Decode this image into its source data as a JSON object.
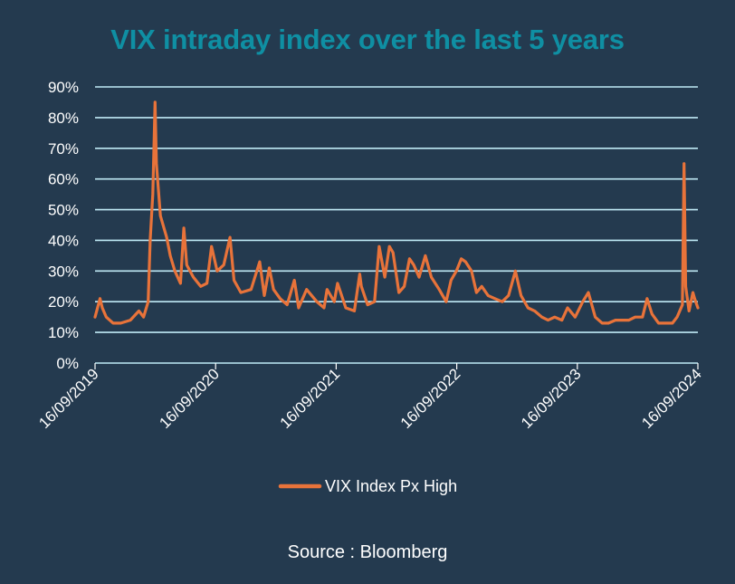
{
  "title": "VIX intraday index over the last 5 years",
  "source": "Source : Bloomberg",
  "colors": {
    "background": "#243a4f",
    "title": "#0f8fa3",
    "series": "#e8733a",
    "grid": "#bfe9f5"
  },
  "chart_data": {
    "type": "line",
    "title": "VIX intraday index over the last 5 years",
    "xlabel": "",
    "ylabel": "",
    "ylim": [
      0,
      90
    ],
    "xlim": [
      "2019-09-16",
      "2024-09-16"
    ],
    "y_ticks": [
      "0%",
      "10%",
      "20%",
      "30%",
      "40%",
      "50%",
      "60%",
      "70%",
      "80%",
      "90%"
    ],
    "x_ticks": [
      "16/09/2019",
      "16/09/2020",
      "16/09/2021",
      "16/09/2022",
      "16/09/2023",
      "16/09/2024"
    ],
    "grid": true,
    "legend_position": "bottom",
    "series": [
      {
        "name": "VIX Index Px High",
        "x": [
          "2019-09-16",
          "2019-10-01",
          "2019-10-08",
          "2019-10-20",
          "2019-11-10",
          "2019-12-03",
          "2020-01-01",
          "2020-01-27",
          "2020-02-10",
          "2020-02-24",
          "2020-03-01",
          "2020-03-09",
          "2020-03-16",
          "2020-03-20",
          "2020-04-01",
          "2020-04-20",
          "2020-05-01",
          "2020-05-15",
          "2020-06-01",
          "2020-06-11",
          "2020-06-20",
          "2020-07-10",
          "2020-08-01",
          "2020-08-20",
          "2020-09-03",
          "2020-09-20",
          "2020-10-10",
          "2020-10-29",
          "2020-11-10",
          "2020-12-01",
          "2021-01-01",
          "2021-01-27",
          "2021-02-10",
          "2021-02-25",
          "2021-03-10",
          "2021-03-30",
          "2021-04-20",
          "2021-05-12",
          "2021-05-25",
          "2021-06-18",
          "2021-07-19",
          "2021-08-10",
          "2021-08-19",
          "2021-09-10",
          "2021-09-20",
          "2021-10-15",
          "2021-11-10",
          "2021-11-26",
          "2021-12-01",
          "2021-12-20",
          "2022-01-10",
          "2022-01-24",
          "2022-02-10",
          "2022-02-24",
          "2022-03-07",
          "2022-03-25",
          "2022-04-10",
          "2022-04-26",
          "2022-05-09",
          "2022-05-25",
          "2022-06-13",
          "2022-07-01",
          "2022-07-25",
          "2022-08-15",
          "2022-08-30",
          "2022-09-15",
          "2022-09-30",
          "2022-10-13",
          "2022-10-31",
          "2022-11-15",
          "2022-12-01",
          "2022-12-20",
          "2023-01-10",
          "2023-02-01",
          "2023-02-20",
          "2023-03-13",
          "2023-03-30",
          "2023-04-20",
          "2023-05-10",
          "2023-06-01",
          "2023-06-20",
          "2023-07-10",
          "2023-08-01",
          "2023-08-18",
          "2023-09-10",
          "2023-10-03",
          "2023-10-20",
          "2023-11-10",
          "2023-12-01",
          "2023-12-20",
          "2024-01-10",
          "2024-02-01",
          "2024-02-20",
          "2024-03-10",
          "2024-04-01",
          "2024-04-15",
          "2024-04-30",
          "2024-05-20",
          "2024-06-10",
          "2024-07-01",
          "2024-07-15",
          "2024-07-31",
          "2024-08-05",
          "2024-08-10",
          "2024-08-20",
          "2024-09-01",
          "2024-09-06",
          "2024-09-16"
        ],
        "y": [
          15,
          21,
          18,
          15,
          13,
          13,
          14,
          17,
          15,
          20,
          40,
          55,
          85,
          65,
          48,
          41,
          35,
          30,
          26,
          44,
          32,
          28,
          25,
          26,
          38,
          30,
          32,
          41,
          27,
          23,
          24,
          33,
          22,
          31,
          24,
          21,
          19,
          27,
          18,
          24,
          20,
          18,
          24,
          20,
          26,
          18,
          17,
          29,
          25,
          19,
          20,
          38,
          28,
          38,
          36,
          23,
          25,
          34,
          32,
          28,
          35,
          28,
          24,
          20,
          27,
          30,
          34,
          33,
          30,
          23,
          25,
          22,
          21,
          20,
          22,
          30,
          22,
          18,
          17,
          15,
          14,
          15,
          14,
          18,
          15,
          20,
          23,
          15,
          13,
          13,
          14,
          14,
          14,
          15,
          15,
          21,
          16,
          13,
          13,
          13,
          15,
          19,
          65,
          25,
          17,
          23,
          21,
          18
        ]
      }
    ]
  }
}
